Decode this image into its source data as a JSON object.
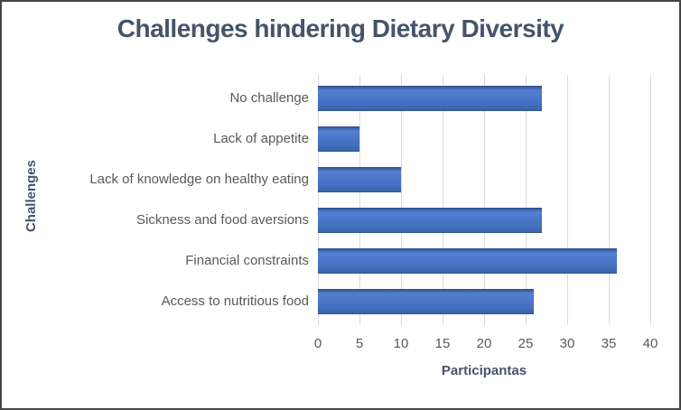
{
  "chart": {
    "title": "Challenges hindering Dietary Diversity",
    "x_axis_title": "Participantas",
    "y_axis_title": "Challenges",
    "colors": {
      "bar": "#4472C4",
      "bar_edge": "#2C4D8F",
      "gridline": "#D9D9D9",
      "title_text": "#44546A",
      "tick_text": "#595959",
      "border": "#454545"
    }
  },
  "chart_data": {
    "type": "bar",
    "orientation": "horizontal",
    "title": "Challenges hindering Dietary Diversity",
    "xlabel": "Participantas",
    "ylabel": "Challenges",
    "categories": [
      "No challenge",
      "Lack of appetite",
      "Lack of knowledge on healthy eating",
      "Sickness and food aversions",
      "Financial constraints",
      "Access to nutritious food"
    ],
    "values": [
      27,
      5,
      10,
      27,
      36,
      26
    ],
    "xlim": [
      0,
      40
    ],
    "x_ticks": [
      0,
      5,
      10,
      15,
      20,
      25,
      30,
      35,
      40
    ],
    "grid": true,
    "legend": false
  }
}
